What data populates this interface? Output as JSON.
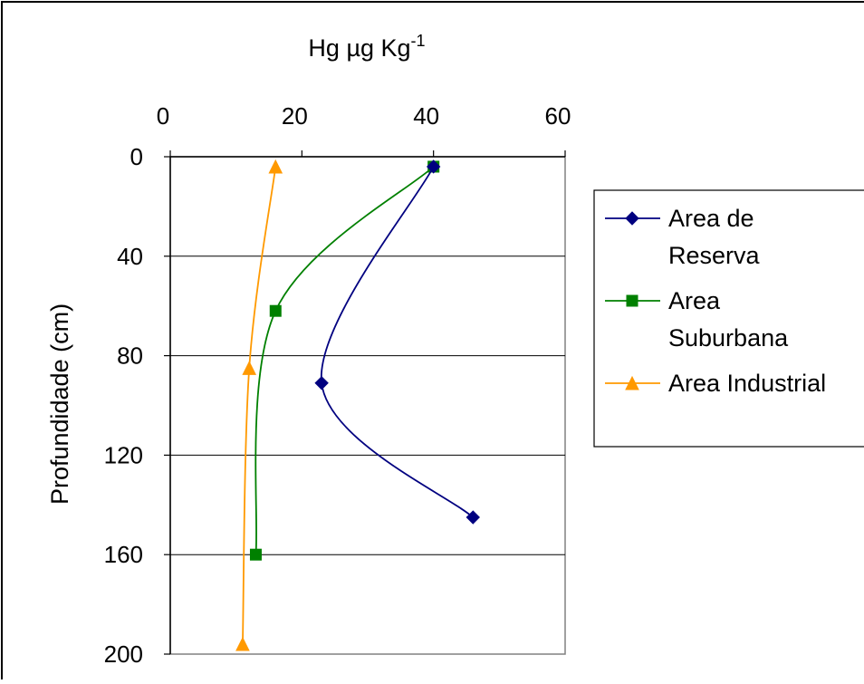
{
  "chart_data": {
    "type": "line",
    "orientation": "inverted-depth-profile",
    "x_axis_position": "top",
    "y_axis_inverted": true,
    "xlabel": "Hg µg Kg",
    "xlabel_superscript": "-1",
    "ylabel": "Profundidade (cm)",
    "xlim": [
      0,
      60
    ],
    "ylim": [
      0,
      200
    ],
    "xticks": [
      0,
      20,
      40,
      60
    ],
    "yticks": [
      0,
      40,
      80,
      120,
      160,
      200
    ],
    "grid": "horizontal",
    "legend": "right",
    "series": [
      {
        "name": "Area de Reserva",
        "name_lines": [
          "Area de",
          "Reserva"
        ],
        "color": "#000080",
        "marker": "diamond",
        "points": [
          [
            40,
            4
          ],
          [
            23,
            91
          ],
          [
            46,
            145
          ]
        ]
      },
      {
        "name": "Area Suburbana",
        "name_lines": [
          "Area",
          "Suburbana"
        ],
        "color": "#008000",
        "marker": "square",
        "points": [
          [
            40,
            4
          ],
          [
            16,
            62
          ],
          [
            13,
            160
          ]
        ]
      },
      {
        "name": "Area Industrial",
        "name_lines": [
          "Area Industrial"
        ],
        "color": "#FF9900",
        "marker": "triangle",
        "points": [
          [
            16,
            4
          ],
          [
            12,
            85
          ],
          [
            11,
            196
          ]
        ]
      }
    ]
  }
}
